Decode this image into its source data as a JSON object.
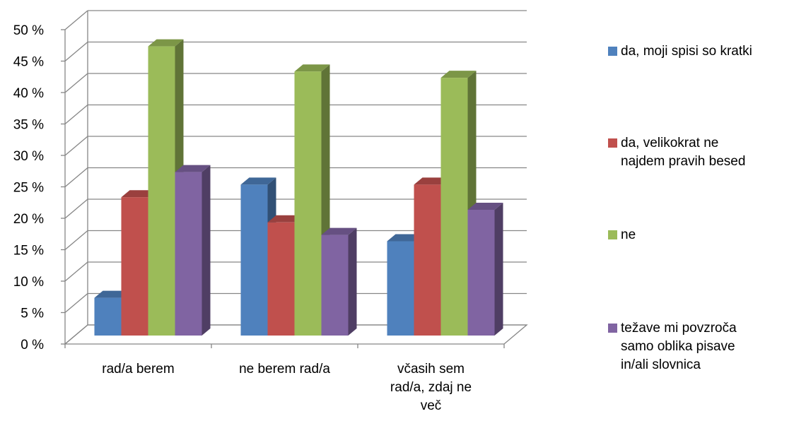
{
  "chart_data": {
    "type": "bar",
    "title": "",
    "xlabel": "",
    "ylabel": "",
    "ylim": [
      0,
      50
    ],
    "yticks": [
      "0 %",
      "5 %",
      "10 %",
      "15 %",
      "20 %",
      "25 %",
      "30 %",
      "35 %",
      "40 %",
      "45 %",
      "50 %"
    ],
    "grid": true,
    "legend_position": "right",
    "categories": [
      "rad/a berem",
      "ne berem rad/a",
      "včasih sem rad/a, zdaj ne več"
    ],
    "series": [
      {
        "name": "da, moji spisi so kratki",
        "color": "#4F81BD",
        "values": [
          6,
          24,
          15
        ]
      },
      {
        "name": "da, velikokrat ne najdem pravih besed",
        "color": "#C0504D",
        "values": [
          22,
          18,
          24
        ]
      },
      {
        "name": "ne",
        "color": "#9BBB59",
        "values": [
          46,
          42,
          41
        ]
      },
      {
        "name": "težave mi povzroča samo oblika pisave in/ali slovnica",
        "color": "#8064A2",
        "values": [
          26,
          16,
          20
        ]
      }
    ]
  }
}
